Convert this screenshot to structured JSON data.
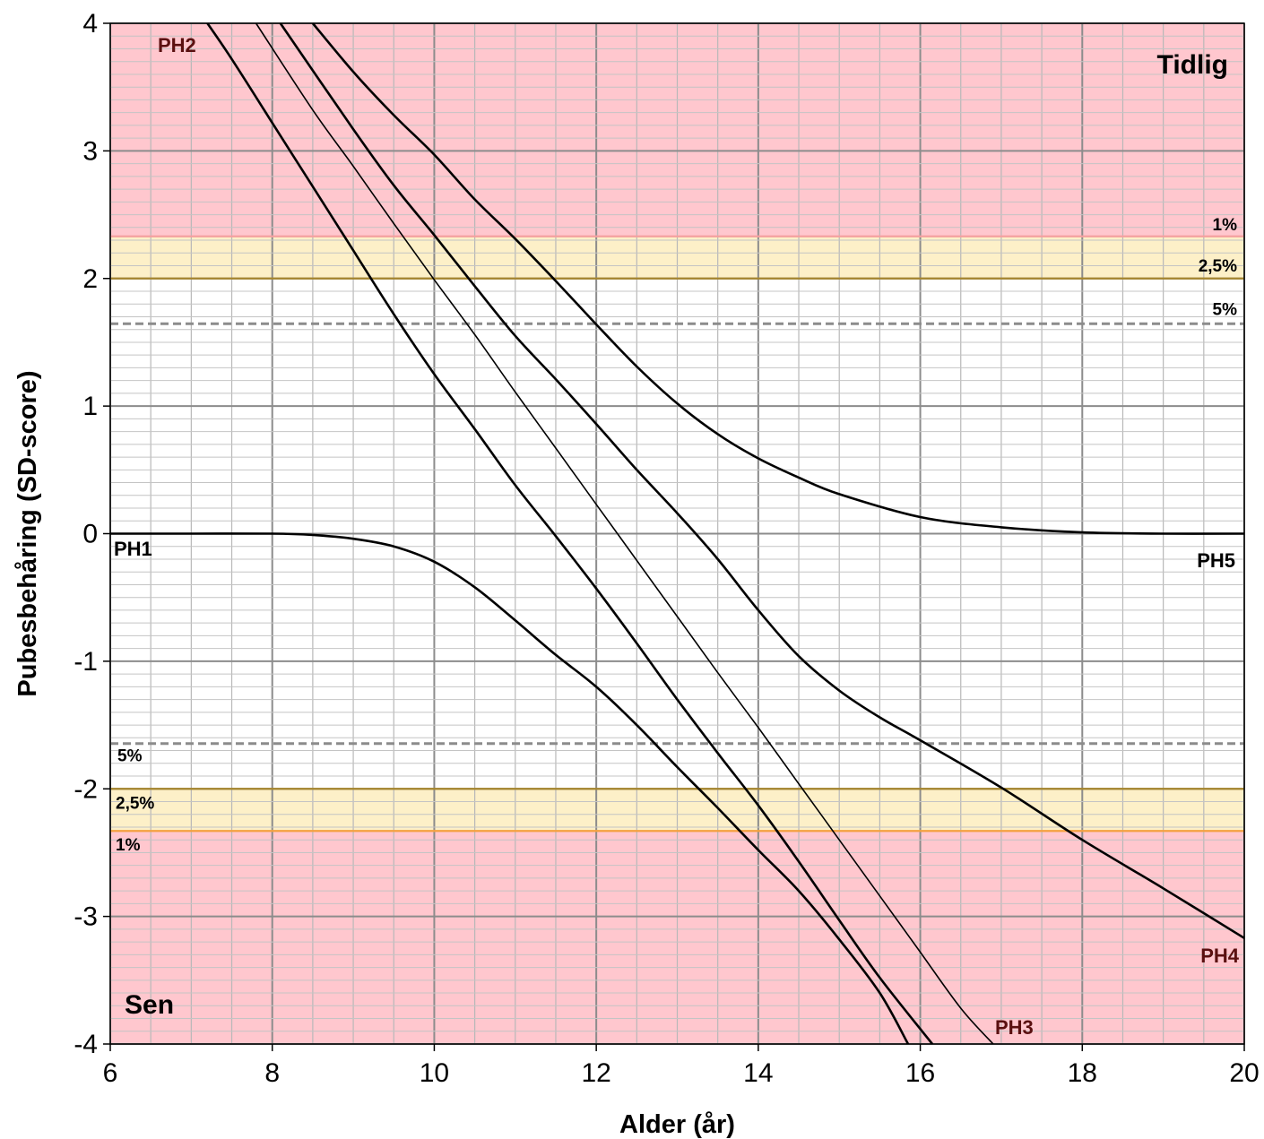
{
  "chart_data": {
    "type": "line",
    "xlabel": "Alder (år)",
    "ylabel": "Pubesbehåring (SD-score)",
    "xlim": [
      6,
      20
    ],
    "ylim": [
      -4,
      4
    ],
    "x_ticks": [
      "6",
      "8",
      "10",
      "12",
      "14",
      "16",
      "18",
      "20"
    ],
    "y_ticks": [
      "-4",
      "-3",
      "-2",
      "-1",
      "0",
      "1",
      "2",
      "3",
      "4"
    ],
    "grid": "minor 0.5 year x 0.1 SD, major 2 years x 1 SD",
    "zones": [
      {
        "label": "Tidlig",
        "from": 2.33,
        "to": 4,
        "color": "#ffc7ce"
      },
      {
        "label": "",
        "from": 2.0,
        "to": 2.33,
        "color": "#fdf0c8"
      },
      {
        "label": "",
        "from": -2.33,
        "to": -2.0,
        "color": "#fdf0c8"
      },
      {
        "label": "Sen",
        "from": -4,
        "to": -2.33,
        "color": "#ffc7ce"
      }
    ],
    "reference_lines": [
      {
        "label": "1%",
        "y": 2.33,
        "style": "solid",
        "color": "#f4a0a0"
      },
      {
        "label": "2,5%",
        "y": 2.0,
        "style": "solid",
        "color": "#a6862e"
      },
      {
        "label": "5%",
        "y": 1.645,
        "style": "dashed",
        "color": "#8c8c8c"
      },
      {
        "label": "5%",
        "y": -1.645,
        "style": "dashed",
        "color": "#8c8c8c"
      },
      {
        "label": "2,5%",
        "y": -2.0,
        "style": "solid",
        "color": "#a6862e"
      },
      {
        "label": "1%",
        "y": -2.33,
        "style": "solid",
        "color": "#f4a040"
      }
    ],
    "series": [
      {
        "name": "PH1",
        "width": 2.6,
        "x": [
          6,
          7,
          8,
          8.5,
          9,
          9.5,
          10,
          10.5,
          11,
          11.5,
          12,
          12.5,
          13,
          13.5,
          14,
          14.5,
          15,
          15.5,
          15.85
        ],
        "y": [
          0,
          0,
          0,
          -0.01,
          -0.04,
          -0.1,
          -0.22,
          -0.42,
          -0.68,
          -0.95,
          -1.2,
          -1.5,
          -1.83,
          -2.15,
          -2.48,
          -2.8,
          -3.18,
          -3.6,
          -4
        ]
      },
      {
        "name": "PH2",
        "width": 2.6,
        "x": [
          7.2,
          7.5,
          8,
          8.5,
          9,
          9.5,
          10,
          10.5,
          11,
          11.5,
          12,
          12.5,
          13,
          13.5,
          14,
          14.5,
          15,
          15.5,
          16.15
        ],
        "y": [
          4,
          3.72,
          3.22,
          2.72,
          2.22,
          1.72,
          1.25,
          0.82,
          0.38,
          -0.02,
          -0.43,
          -0.86,
          -1.3,
          -1.72,
          -2.13,
          -2.57,
          -3.03,
          -3.48,
          -4
        ]
      },
      {
        "name": "PH3",
        "width": 1.6,
        "x": [
          7.8,
          8.5,
          9,
          9.5,
          10,
          10.5,
          11,
          11.5,
          12,
          12.5,
          13,
          13.5,
          14,
          14.5,
          15,
          15.5,
          16,
          16.5,
          16.9
        ],
        "y": [
          4,
          3.32,
          2.88,
          2.43,
          1.99,
          1.56,
          1.11,
          0.67,
          0.23,
          -0.21,
          -0.65,
          -1.09,
          -1.52,
          -1.96,
          -2.4,
          -2.84,
          -3.28,
          -3.72,
          -4
        ]
      },
      {
        "name": "PH4",
        "width": 2.6,
        "x": [
          8.1,
          9,
          9.5,
          10,
          10.5,
          11,
          11.5,
          12,
          12.5,
          13,
          13.5,
          14,
          14.5,
          15,
          15.5,
          16,
          17,
          18,
          19,
          20
        ],
        "y": [
          4,
          3.17,
          2.73,
          2.34,
          1.94,
          1.55,
          1.21,
          0.86,
          0.5,
          0.16,
          -0.2,
          -0.6,
          -0.96,
          -1.23,
          -1.44,
          -1.62,
          -1.99,
          -2.4,
          -2.78,
          -3.17
        ]
      },
      {
        "name": "PH5",
        "width": 2.6,
        "x": [
          8.5,
          9,
          9.5,
          10,
          10.5,
          11,
          11.5,
          12,
          12.5,
          13,
          13.5,
          14,
          14.5,
          15,
          16,
          17,
          18,
          19,
          20
        ],
        "y": [
          4,
          3.62,
          3.28,
          2.97,
          2.62,
          2.31,
          1.98,
          1.64,
          1.31,
          1.02,
          0.78,
          0.59,
          0.44,
          0.31,
          0.13,
          0.05,
          0.01,
          0,
          0
        ]
      }
    ],
    "stage_labels": [
      {
        "text": "PH1",
        "color": "#000000"
      },
      {
        "text": "PH2",
        "color": "#5a1010"
      },
      {
        "text": "PH3",
        "color": "#5a1010"
      },
      {
        "text": "PH4",
        "color": "#5a1010"
      },
      {
        "text": "PH5",
        "color": "#000000"
      }
    ],
    "zone_labels": [
      "Tidlig",
      "Sen"
    ]
  }
}
